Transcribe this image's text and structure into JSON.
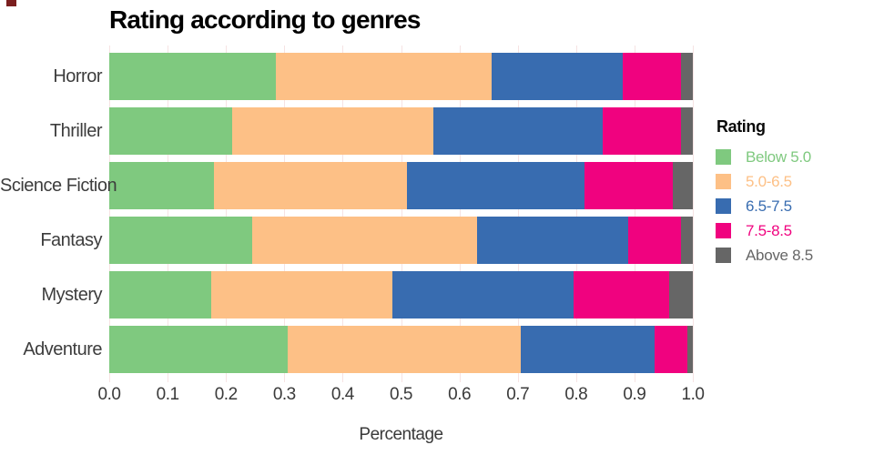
{
  "title": "Rating according to genres",
  "xlabel": "Percentage",
  "legend": {
    "title": "Rating"
  },
  "decor": {
    "corner_square_color": "#7a1f1f",
    "grid_color": "#f6e3e3",
    "label_color": "#3a3a3a"
  },
  "chart_data": {
    "type": "bar",
    "orientation": "horizontal_stacked",
    "title": "Rating according to genres",
    "xlabel": "Percentage",
    "ylabel": "",
    "xlim": [
      0,
      1
    ],
    "grid": true,
    "legend_position": "right",
    "legend_title": "Rating",
    "x_tick_labels": [
      "0.0",
      "0.1",
      "0.2",
      "0.3",
      "0.4",
      "0.5",
      "0.6",
      "0.7",
      "0.8",
      "0.9",
      "1.0"
    ],
    "categories": [
      "Horror",
      "Thriller",
      "Science Fiction",
      "Fantasy",
      "Mystery",
      "Adventure"
    ],
    "series": [
      {
        "name": "Below 5.0",
        "color": "#7fc97f",
        "values": [
          0.285,
          0.21,
          0.18,
          0.245,
          0.175,
          0.305
        ]
      },
      {
        "name": "5.0-6.5",
        "color": "#fdc086",
        "values": [
          0.37,
          0.345,
          0.33,
          0.385,
          0.31,
          0.4
        ]
      },
      {
        "name": "6.5-7.5",
        "color": "#386cb0",
        "values": [
          0.225,
          0.29,
          0.305,
          0.26,
          0.31,
          0.23
        ]
      },
      {
        "name": "7.5-8.5",
        "color": "#f0027f",
        "values": [
          0.1,
          0.135,
          0.15,
          0.09,
          0.165,
          0.055
        ]
      },
      {
        "name": "Above 8.5",
        "color": "#666666",
        "values": [
          0.02,
          0.02,
          0.035,
          0.02,
          0.04,
          0.01
        ]
      }
    ]
  }
}
